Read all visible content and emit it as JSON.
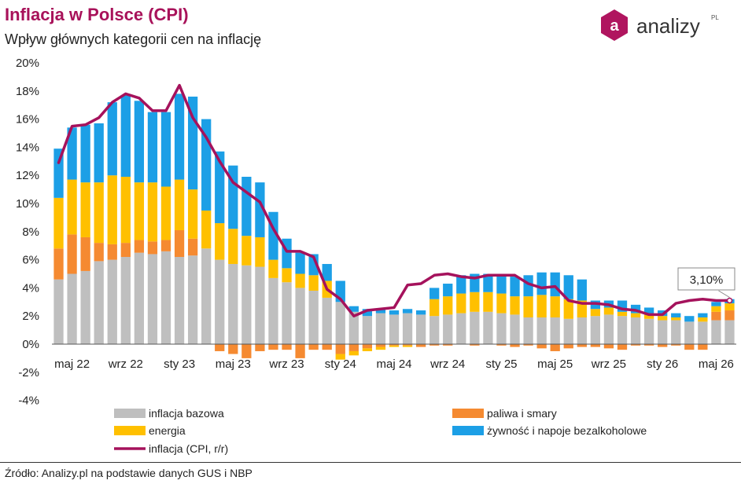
{
  "header": {
    "title": "Inflacja w Polsce (CPI)",
    "subtitle": "Wpływ głównych kategorii cen na inflację"
  },
  "logo": {
    "text": "analizy",
    "suffix": "PL",
    "mark_letter": "a"
  },
  "source": "Źródło: Analizy.pl na podstawie danych GUS i NBP",
  "colors": {
    "title": "#a8125a",
    "core": "#bfbfbf",
    "fuel": "#f58a31",
    "energy": "#ffc000",
    "food": "#1c9fe6",
    "cpi": "#a5125c"
  },
  "chart_data": {
    "type": "bar",
    "stacked": true,
    "title": "Inflacja w Polsce (CPI)",
    "subtitle": "Wpływ głównych kategorii cen na inflację",
    "x_tick_labels": [
      "maj 22",
      "wrz 22",
      "sty 23",
      "maj 23",
      "wrz 23",
      "sty 24",
      "maj 24",
      "wrz 24",
      "sty 25",
      "maj 25",
      "wrz 25",
      "sty 26",
      "maj 26"
    ],
    "categories": [
      "2022-04",
      "2022-05",
      "2022-06",
      "2022-07",
      "2022-08",
      "2022-09",
      "2022-10",
      "2022-11",
      "2022-12",
      "2023-01",
      "2023-02",
      "2023-03",
      "2023-04",
      "2023-05",
      "2023-06",
      "2023-07",
      "2023-08",
      "2023-09",
      "2023-10",
      "2023-11",
      "2023-12",
      "2024-01",
      "2024-02",
      "2024-03",
      "2024-04",
      "2024-05",
      "2024-06",
      "2024-07",
      "2024-08",
      "2024-09",
      "2024-10",
      "2024-11",
      "2024-12",
      "2025-01",
      "2025-02",
      "2025-03",
      "2025-04",
      "2025-05",
      "2025-06",
      "2025-07",
      "2025-08",
      "2025-09",
      "2025-10",
      "2025-11",
      "2025-12",
      "2026-01",
      "2026-02",
      "2026-03",
      "2026-04",
      "2026-05",
      "2026-06"
    ],
    "series": [
      {
        "name": "inflacja bazowa",
        "kind": "bar",
        "color": "#bfbfbf",
        "values": [
          4.6,
          5.0,
          5.2,
          5.9,
          6.0,
          6.2,
          6.5,
          6.4,
          6.6,
          6.2,
          6.3,
          6.8,
          6.0,
          5.7,
          5.6,
          5.5,
          4.7,
          4.4,
          4.0,
          3.8,
          3.3,
          3.0,
          2.3,
          2.0,
          2.2,
          2.1,
          2.2,
          2.1,
          2.0,
          2.1,
          2.2,
          2.3,
          2.3,
          2.2,
          2.1,
          1.9,
          1.9,
          1.9,
          1.8,
          1.9,
          2.0,
          2.1,
          2.0,
          1.9,
          1.8,
          1.7,
          1.7,
          1.6,
          1.6,
          1.7,
          1.7
        ]
      },
      {
        "name": "paliwa i smary",
        "kind": "bar",
        "color": "#f58a31",
        "values": [
          2.2,
          2.8,
          2.4,
          1.3,
          1.1,
          1.0,
          0.9,
          0.9,
          0.8,
          1.9,
          1.2,
          0.0,
          -0.5,
          -0.7,
          -1.0,
          -0.5,
          -0.4,
          -0.4,
          -1.0,
          -0.4,
          -0.4,
          -0.7,
          -0.5,
          -0.3,
          -0.2,
          -0.1,
          -0.1,
          -0.2,
          -0.1,
          -0.1,
          0.0,
          -0.1,
          0.0,
          -0.1,
          -0.2,
          -0.1,
          -0.3,
          -0.5,
          -0.3,
          -0.2,
          -0.2,
          -0.3,
          -0.4,
          -0.1,
          -0.1,
          -0.2,
          -0.1,
          -0.4,
          -0.4,
          0.6,
          0.7
        ]
      },
      {
        "name": "energia",
        "kind": "bar",
        "color": "#ffc000",
        "values": [
          3.6,
          3.9,
          3.9,
          4.3,
          4.9,
          4.7,
          4.1,
          4.2,
          3.8,
          3.6,
          3.5,
          2.7,
          2.6,
          2.5,
          2.1,
          2.1,
          1.3,
          1.0,
          1.0,
          1.1,
          1.2,
          -0.4,
          -0.3,
          -0.2,
          -0.2,
          -0.1,
          -0.1,
          0.0,
          1.2,
          1.3,
          1.4,
          1.4,
          1.4,
          1.4,
          1.3,
          1.5,
          1.6,
          1.5,
          1.4,
          1.2,
          0.5,
          0.5,
          0.3,
          0.3,
          0.3,
          0.3,
          0.2,
          0.0,
          0.3,
          0.4,
          0.5
        ]
      },
      {
        "name": "żywność i napoje bezalkoholowe",
        "kind": "bar",
        "color": "#1c9fe6",
        "values": [
          3.5,
          3.7,
          4.1,
          4.2,
          5.2,
          5.8,
          5.8,
          5.0,
          5.3,
          6.1,
          6.6,
          6.5,
          5.1,
          4.5,
          4.2,
          3.9,
          3.4,
          2.1,
          1.5,
          1.5,
          1.2,
          1.5,
          0.4,
          0.5,
          0.3,
          0.3,
          0.3,
          0.3,
          0.8,
          0.9,
          1.3,
          1.3,
          1.3,
          1.3,
          1.4,
          1.5,
          1.6,
          1.7,
          1.7,
          1.5,
          0.6,
          0.5,
          0.8,
          0.6,
          0.5,
          0.4,
          0.3,
          0.4,
          0.3,
          0.3,
          0.3
        ]
      },
      {
        "name": "inflacja (CPI, r/r)",
        "kind": "line",
        "color": "#a5125c",
        "values": [
          12.9,
          15.5,
          15.6,
          16.1,
          17.2,
          17.8,
          17.5,
          16.6,
          16.6,
          18.4,
          16.1,
          14.7,
          13.0,
          11.5,
          10.8,
          10.1,
          8.2,
          6.6,
          6.6,
          6.2,
          3.9,
          3.2,
          2.0,
          2.4,
          2.5,
          2.6,
          4.2,
          4.3,
          4.9,
          5.0,
          4.8,
          4.7,
          4.9,
          4.9,
          4.9,
          4.3,
          4.0,
          4.1,
          3.1,
          2.9,
          2.9,
          2.8,
          2.5,
          2.4,
          2.1,
          2.1,
          2.9,
          3.1,
          3.2,
          3.1,
          3.1
        ]
      }
    ],
    "annotation": {
      "label": "3,10%",
      "value": 3.1
    },
    "y_tick_labels": [
      "20%",
      "18%",
      "16%",
      "14%",
      "12%",
      "10%",
      "8%",
      "6%",
      "4%",
      "2%",
      "0%",
      "-2%",
      "-4%"
    ],
    "ylim": [
      -4,
      20
    ],
    "y_step": 2,
    "grid": false,
    "legend_position": "bottom"
  }
}
